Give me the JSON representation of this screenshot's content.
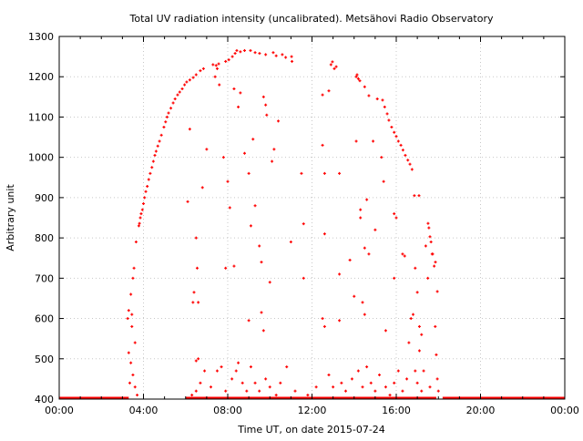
{
  "chart_data": {
    "type": "scatter",
    "title": "Total UV radiation intensity (uncalibrated). Metsähovi Radio Observatory",
    "xlabel": "Time UT, on date 2015-07-24",
    "ylabel": "Arbitrary unit",
    "xlim": [
      0,
      24
    ],
    "ylim": [
      400,
      1300
    ],
    "x_ticks": [
      0,
      4,
      8,
      12,
      16,
      20,
      24
    ],
    "x_tick_labels": [
      "00:00",
      "04:00",
      "08:00",
      "12:00",
      "16:00",
      "20:00",
      "00:00"
    ],
    "y_ticks": [
      400,
      500,
      600,
      700,
      800,
      900,
      1000,
      1100,
      1200,
      1300
    ],
    "y_tick_labels": [
      "400",
      "500",
      "600",
      "700",
      "800",
      "900",
      "1000",
      "1100",
      "1200",
      "1300"
    ],
    "grid": true,
    "marker_color": "#ff0000",
    "baseline": {
      "value": 400,
      "ranges": [
        [
          0,
          3.3
        ],
        [
          18.2,
          24
        ],
        [
          6.0,
          17.9
        ]
      ],
      "step": 0.08
    },
    "series": [
      {
        "name": "envelope",
        "points": [
          [
            3.78,
            830
          ],
          [
            3.81,
            836
          ],
          [
            3.85,
            850
          ],
          [
            3.89,
            860
          ],
          [
            3.95,
            870
          ],
          [
            4.0,
            885
          ],
          [
            4.05,
            900
          ],
          [
            4.11,
            915
          ],
          [
            4.18,
            928
          ],
          [
            4.25,
            945
          ],
          [
            4.32,
            960
          ],
          [
            4.4,
            975
          ],
          [
            4.47,
            990
          ],
          [
            4.54,
            1005
          ],
          [
            4.6,
            1015
          ],
          [
            4.68,
            1028
          ],
          [
            4.76,
            1040
          ],
          [
            4.85,
            1055
          ],
          [
            4.97,
            1075
          ],
          [
            5.05,
            1088
          ],
          [
            5.12,
            1100
          ],
          [
            5.19,
            1110
          ],
          [
            5.3,
            1122
          ],
          [
            5.41,
            1135
          ],
          [
            5.5,
            1145
          ],
          [
            5.62,
            1155
          ],
          [
            5.72,
            1162
          ],
          [
            5.84,
            1170
          ],
          [
            5.95,
            1180
          ],
          [
            6.05,
            1187
          ],
          [
            6.2,
            1192
          ],
          [
            6.36,
            1198
          ],
          [
            6.5,
            1205
          ],
          [
            6.7,
            1215
          ],
          [
            6.85,
            1220
          ],
          [
            7.3,
            1230
          ],
          [
            7.45,
            1228
          ],
          [
            7.57,
            1232
          ],
          [
            7.9,
            1238
          ],
          [
            8.05,
            1242
          ],
          [
            8.22,
            1250
          ],
          [
            8.35,
            1258
          ],
          [
            8.43,
            1265
          ],
          [
            8.6,
            1262
          ],
          [
            8.8,
            1265
          ],
          [
            9.08,
            1265
          ],
          [
            9.3,
            1260
          ],
          [
            9.51,
            1258
          ],
          [
            9.8,
            1255
          ],
          [
            10.16,
            1260
          ],
          [
            10.3,
            1252
          ],
          [
            10.59,
            1255
          ],
          [
            10.75,
            1248
          ],
          [
            11.03,
            1250
          ],
          [
            11.05,
            1238
          ],
          [
            12.9,
            1230
          ],
          [
            12.97,
            1237
          ],
          [
            13.06,
            1220
          ],
          [
            13.15,
            1225
          ],
          [
            14.1,
            1200
          ],
          [
            14.14,
            1205
          ],
          [
            14.2,
            1195
          ],
          [
            14.27,
            1190
          ],
          [
            14.5,
            1175
          ],
          [
            14.7,
            1153
          ],
          [
            15.1,
            1145
          ],
          [
            15.35,
            1142
          ],
          [
            15.45,
            1125
          ],
          [
            15.57,
            1108
          ],
          [
            15.65,
            1092
          ],
          [
            15.78,
            1075
          ],
          [
            15.9,
            1062
          ],
          [
            16.0,
            1052
          ],
          [
            16.1,
            1040
          ],
          [
            16.22,
            1030
          ],
          [
            16.32,
            1018
          ],
          [
            16.43,
            1005
          ],
          [
            16.55,
            993
          ],
          [
            16.65,
            983
          ],
          [
            16.75,
            970
          ],
          [
            16.86,
            905
          ],
          [
            17.08,
            905
          ],
          [
            17.51,
            836
          ],
          [
            17.55,
            825
          ],
          [
            17.6,
            803
          ],
          [
            17.65,
            790
          ],
          [
            17.73,
            760
          ],
          [
            17.86,
            740
          ],
          [
            17.95,
            667
          ]
        ]
      },
      {
        "name": "scatter",
        "points": [
          [
            3.3,
            620
          ],
          [
            3.4,
            660
          ],
          [
            3.5,
            700
          ],
          [
            3.55,
            725
          ],
          [
            3.45,
            580
          ],
          [
            3.6,
            540
          ],
          [
            3.3,
            515
          ],
          [
            3.4,
            490
          ],
          [
            3.5,
            460
          ],
          [
            3.6,
            430
          ],
          [
            3.7,
            410
          ],
          [
            3.35,
            440
          ],
          [
            3.25,
            600
          ],
          [
            3.45,
            610
          ],
          [
            3.65,
            790
          ],
          [
            6.1,
            890
          ],
          [
            6.2,
            1070
          ],
          [
            6.35,
            640
          ],
          [
            6.4,
            665
          ],
          [
            6.5,
            800
          ],
          [
            6.55,
            725
          ],
          [
            6.6,
            640
          ],
          [
            6.5,
            495
          ],
          [
            6.6,
            500
          ],
          [
            6.8,
            925
          ],
          [
            7.0,
            1020
          ],
          [
            7.4,
            1200
          ],
          [
            7.5,
            1220
          ],
          [
            7.6,
            1180
          ],
          [
            7.8,
            1000
          ],
          [
            7.9,
            725
          ],
          [
            8.0,
            940
          ],
          [
            8.1,
            875
          ],
          [
            8.3,
            730
          ],
          [
            8.3,
            1170
          ],
          [
            8.5,
            1125
          ],
          [
            8.6,
            1160
          ],
          [
            8.8,
            1010
          ],
          [
            9.0,
            960
          ],
          [
            9.1,
            830
          ],
          [
            9.2,
            1045
          ],
          [
            9.3,
            880
          ],
          [
            9.0,
            595
          ],
          [
            9.5,
            780
          ],
          [
            9.6,
            740
          ],
          [
            9.7,
            1150
          ],
          [
            9.8,
            1130
          ],
          [
            9.85,
            1105
          ],
          [
            10.1,
            990
          ],
          [
            10.2,
            1020
          ],
          [
            10.0,
            690
          ],
          [
            10.4,
            1090
          ],
          [
            9.6,
            615
          ],
          [
            9.7,
            570
          ],
          [
            11.0,
            790
          ],
          [
            11.5,
            960
          ],
          [
            11.6,
            835
          ],
          [
            11.6,
            700
          ],
          [
            12.5,
            1155
          ],
          [
            12.5,
            1030
          ],
          [
            12.6,
            960
          ],
          [
            12.6,
            810
          ],
          [
            12.5,
            600
          ],
          [
            12.6,
            580
          ],
          [
            12.8,
            1165
          ],
          [
            13.3,
            960
          ],
          [
            13.3,
            710
          ],
          [
            13.3,
            595
          ],
          [
            14.1,
            1040
          ],
          [
            14.3,
            870
          ],
          [
            14.3,
            850
          ],
          [
            14.5,
            775
          ],
          [
            14.6,
            895
          ],
          [
            14.9,
            1040
          ],
          [
            14.7,
            760
          ],
          [
            13.8,
            745
          ],
          [
            14.0,
            655
          ],
          [
            14.4,
            640
          ],
          [
            14.5,
            610
          ],
          [
            15.0,
            820
          ],
          [
            15.3,
            1000
          ],
          [
            15.5,
            570
          ],
          [
            15.4,
            940
          ],
          [
            15.9,
            860
          ],
          [
            16.0,
            850
          ],
          [
            15.9,
            700
          ],
          [
            16.3,
            760
          ],
          [
            16.4,
            755
          ],
          [
            16.6,
            540
          ],
          [
            16.7,
            600
          ],
          [
            16.8,
            610
          ],
          [
            16.9,
            725
          ],
          [
            17.0,
            665
          ],
          [
            17.1,
            580
          ],
          [
            17.2,
            560
          ],
          [
            17.4,
            780
          ],
          [
            17.5,
            700
          ],
          [
            17.7,
            760
          ],
          [
            17.8,
            730
          ],
          [
            17.85,
            580
          ],
          [
            17.9,
            510
          ],
          [
            17.95,
            450
          ],
          [
            18.0,
            420
          ],
          [
            16.9,
            470
          ],
          [
            17.0,
            440
          ],
          [
            17.1,
            520
          ],
          [
            17.2,
            420
          ],
          [
            6.3,
            410
          ],
          [
            6.5,
            420
          ],
          [
            6.7,
            440
          ],
          [
            6.9,
            470
          ],
          [
            7.2,
            430
          ],
          [
            7.5,
            470
          ],
          [
            7.7,
            480
          ],
          [
            7.9,
            420
          ],
          [
            8.2,
            450
          ],
          [
            8.4,
            470
          ],
          [
            8.5,
            490
          ],
          [
            8.7,
            440
          ],
          [
            8.9,
            420
          ],
          [
            9.1,
            480
          ],
          [
            9.3,
            440
          ],
          [
            9.5,
            420
          ],
          [
            9.8,
            450
          ],
          [
            10.0,
            430
          ],
          [
            10.3,
            410
          ],
          [
            10.5,
            440
          ],
          [
            10.8,
            480
          ],
          [
            11.2,
            420
          ],
          [
            11.8,
            410
          ],
          [
            12.2,
            430
          ],
          [
            12.8,
            460
          ],
          [
            13.0,
            430
          ],
          [
            13.4,
            440
          ],
          [
            13.6,
            420
          ],
          [
            13.9,
            450
          ],
          [
            14.2,
            470
          ],
          [
            14.4,
            430
          ],
          [
            14.6,
            480
          ],
          [
            14.8,
            440
          ],
          [
            15.0,
            420
          ],
          [
            15.2,
            460
          ],
          [
            15.5,
            430
          ],
          [
            15.7,
            410
          ],
          [
            15.9,
            440
          ],
          [
            16.1,
            470
          ],
          [
            16.3,
            420
          ],
          [
            16.5,
            450
          ],
          [
            17.3,
            470
          ],
          [
            17.6,
            430
          ]
        ]
      }
    ]
  }
}
